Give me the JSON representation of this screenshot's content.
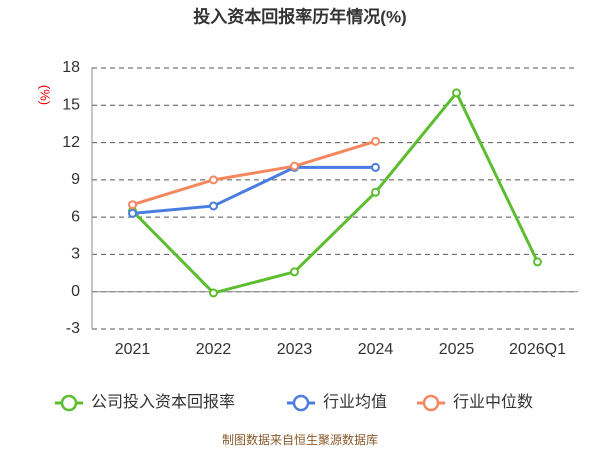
{
  "chart_data": {
    "type": "line",
    "title": "投入资本回报率历年情况(%)",
    "y_label": "(%)",
    "categories": [
      "2021",
      "2022",
      "2023",
      "2024",
      "2025",
      "2026Q1"
    ],
    "series": [
      {
        "name": "公司投入资本回报率",
        "color": "#5cbd2f",
        "values": [
          6.5,
          -0.1,
          1.6,
          8.0,
          16.0,
          2.4
        ]
      },
      {
        "name": "行业均值",
        "color": "#4a7de0",
        "values": [
          6.3,
          6.9,
          10.0,
          10.0,
          null,
          null
        ]
      },
      {
        "name": "行业中位数",
        "color": "#f5875e",
        "values": [
          7.0,
          9.0,
          10.1,
          12.1,
          null,
          null
        ]
      }
    ],
    "ylim": [
      -3,
      18
    ],
    "yticks": [
      -3,
      0,
      3,
      6,
      9,
      12,
      15,
      18
    ],
    "grid": true,
    "source": "制图数据来自恒生聚源数据库"
  }
}
